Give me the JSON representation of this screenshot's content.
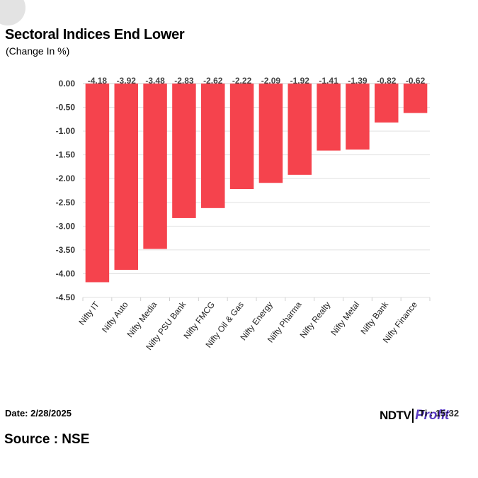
{
  "header": {
    "title": "Sectoral Indices End Lower",
    "subtitle": "(Change In %)"
  },
  "footer": {
    "date": "Date: 2/28/2025",
    "source": "Source : NSE",
    "logo_left": "NDTV",
    "logo_right": "Profit",
    "logo_overlay": "Ti  : 15:32"
  },
  "colors": {
    "bar": "#f5434d",
    "grid": "#e2e2e2",
    "profit": "#5b3cc4"
  },
  "chart_data": {
    "type": "bar",
    "title": "Sectoral Indices End Lower",
    "subtitle": "(Change In %)",
    "xlabel": "",
    "ylabel": "",
    "ylim": [
      -4.5,
      0
    ],
    "yticks": [
      "0.00",
      "-0.50",
      "-1.00",
      "-1.50",
      "-2.00",
      "-2.50",
      "-3.00",
      "-3.50",
      "-4.00",
      "-4.50"
    ],
    "grid": true,
    "categories": [
      "Nifty IT",
      "Nifty Auto",
      "Nifty Media",
      "Nifty PSU Bank",
      "Nifty FMCG",
      "Nifty Oil & Gas",
      "Nifty Energy",
      "Nifty Pharma",
      "Nifty Realty",
      "Nifty Metal",
      "Nifty Bank",
      "Nifty Finance"
    ],
    "values": [
      -4.18,
      -3.92,
      -3.48,
      -2.83,
      -2.62,
      -2.22,
      -2.09,
      -1.92,
      -1.41,
      -1.39,
      -0.82,
      -0.62
    ],
    "data_labels": [
      "-4.18",
      "-3.92",
      "-3.48",
      "-2.83",
      "-2.62",
      "-2.22",
      "-2.09",
      "-1.92",
      "-1.41",
      "-1.39",
      "-0.82",
      "-0.62"
    ]
  }
}
